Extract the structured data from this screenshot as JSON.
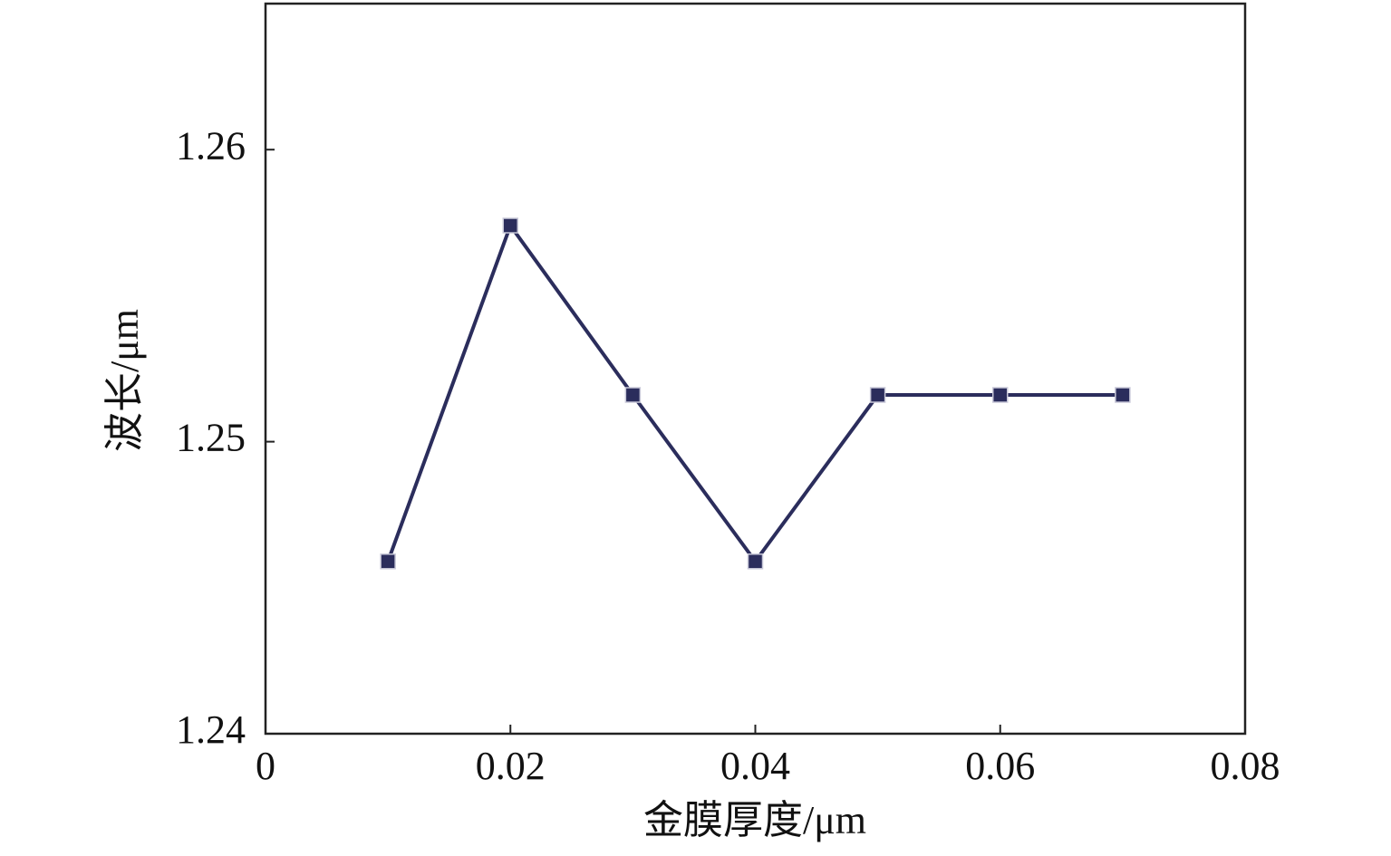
{
  "chart_data": {
    "type": "line",
    "x_label": "金膜厚度/μm",
    "y_label": "波长/μm",
    "x": [
      0.01,
      0.02,
      0.03,
      0.04,
      0.05,
      0.06,
      0.07
    ],
    "series": [
      {
        "color": "#2b2d5c",
        "values": [
          1.2459,
          1.2574,
          1.2516,
          1.2459,
          1.2516,
          1.2516,
          1.2516
        ]
      }
    ],
    "xlim": [
      0,
      0.08
    ],
    "xticks": [
      0,
      0.02,
      0.04,
      0.06,
      0.08
    ],
    "ylim": [
      1.24,
      1.265
    ],
    "yticks": [
      1.24,
      1.25,
      1.26
    ],
    "grid": false
  }
}
